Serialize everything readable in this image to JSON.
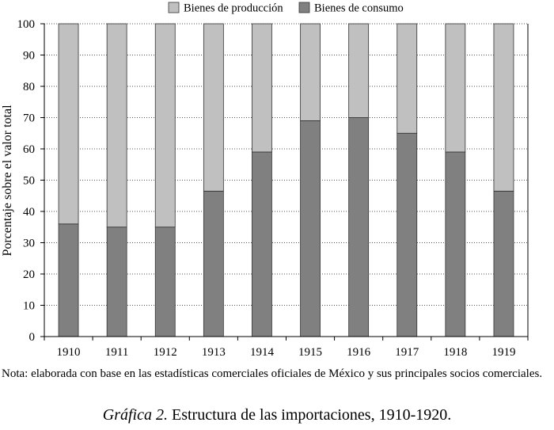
{
  "chart_data": {
    "type": "bar",
    "stacked": true,
    "categories": [
      "1910",
      "1911",
      "1912",
      "1913",
      "1914",
      "1915",
      "1916",
      "1917",
      "1918",
      "1919"
    ],
    "series": [
      {
        "name": "Bienes de consumo",
        "color": "#808080",
        "values": [
          36,
          35,
          35,
          46.5,
          59,
          69,
          70,
          65,
          59,
          46.5
        ]
      },
      {
        "name": "Bienes de producción",
        "color": "#c0c0c0",
        "values": [
          64,
          65,
          65,
          53.5,
          41,
          31,
          30,
          35,
          41,
          53.5
        ]
      }
    ],
    "legend_order": [
      "Bienes de producción",
      "Bienes de consumo"
    ],
    "legend_position": "top-center",
    "ylabel": "Porcentaje sobre el valor total",
    "xlabel": "",
    "ylim": [
      0,
      100
    ],
    "yticks": [
      0,
      10,
      20,
      30,
      40,
      50,
      60,
      70,
      80,
      90,
      100
    ],
    "grid": "horizontal-dotted"
  },
  "note": "Nota: elaborada con base en las estadísticas comerciales oficiales de México y sus principales socios comerciales.",
  "caption": {
    "label": "Gráfica 2.",
    "text": "Estructura de las importaciones, 1910-1920."
  }
}
